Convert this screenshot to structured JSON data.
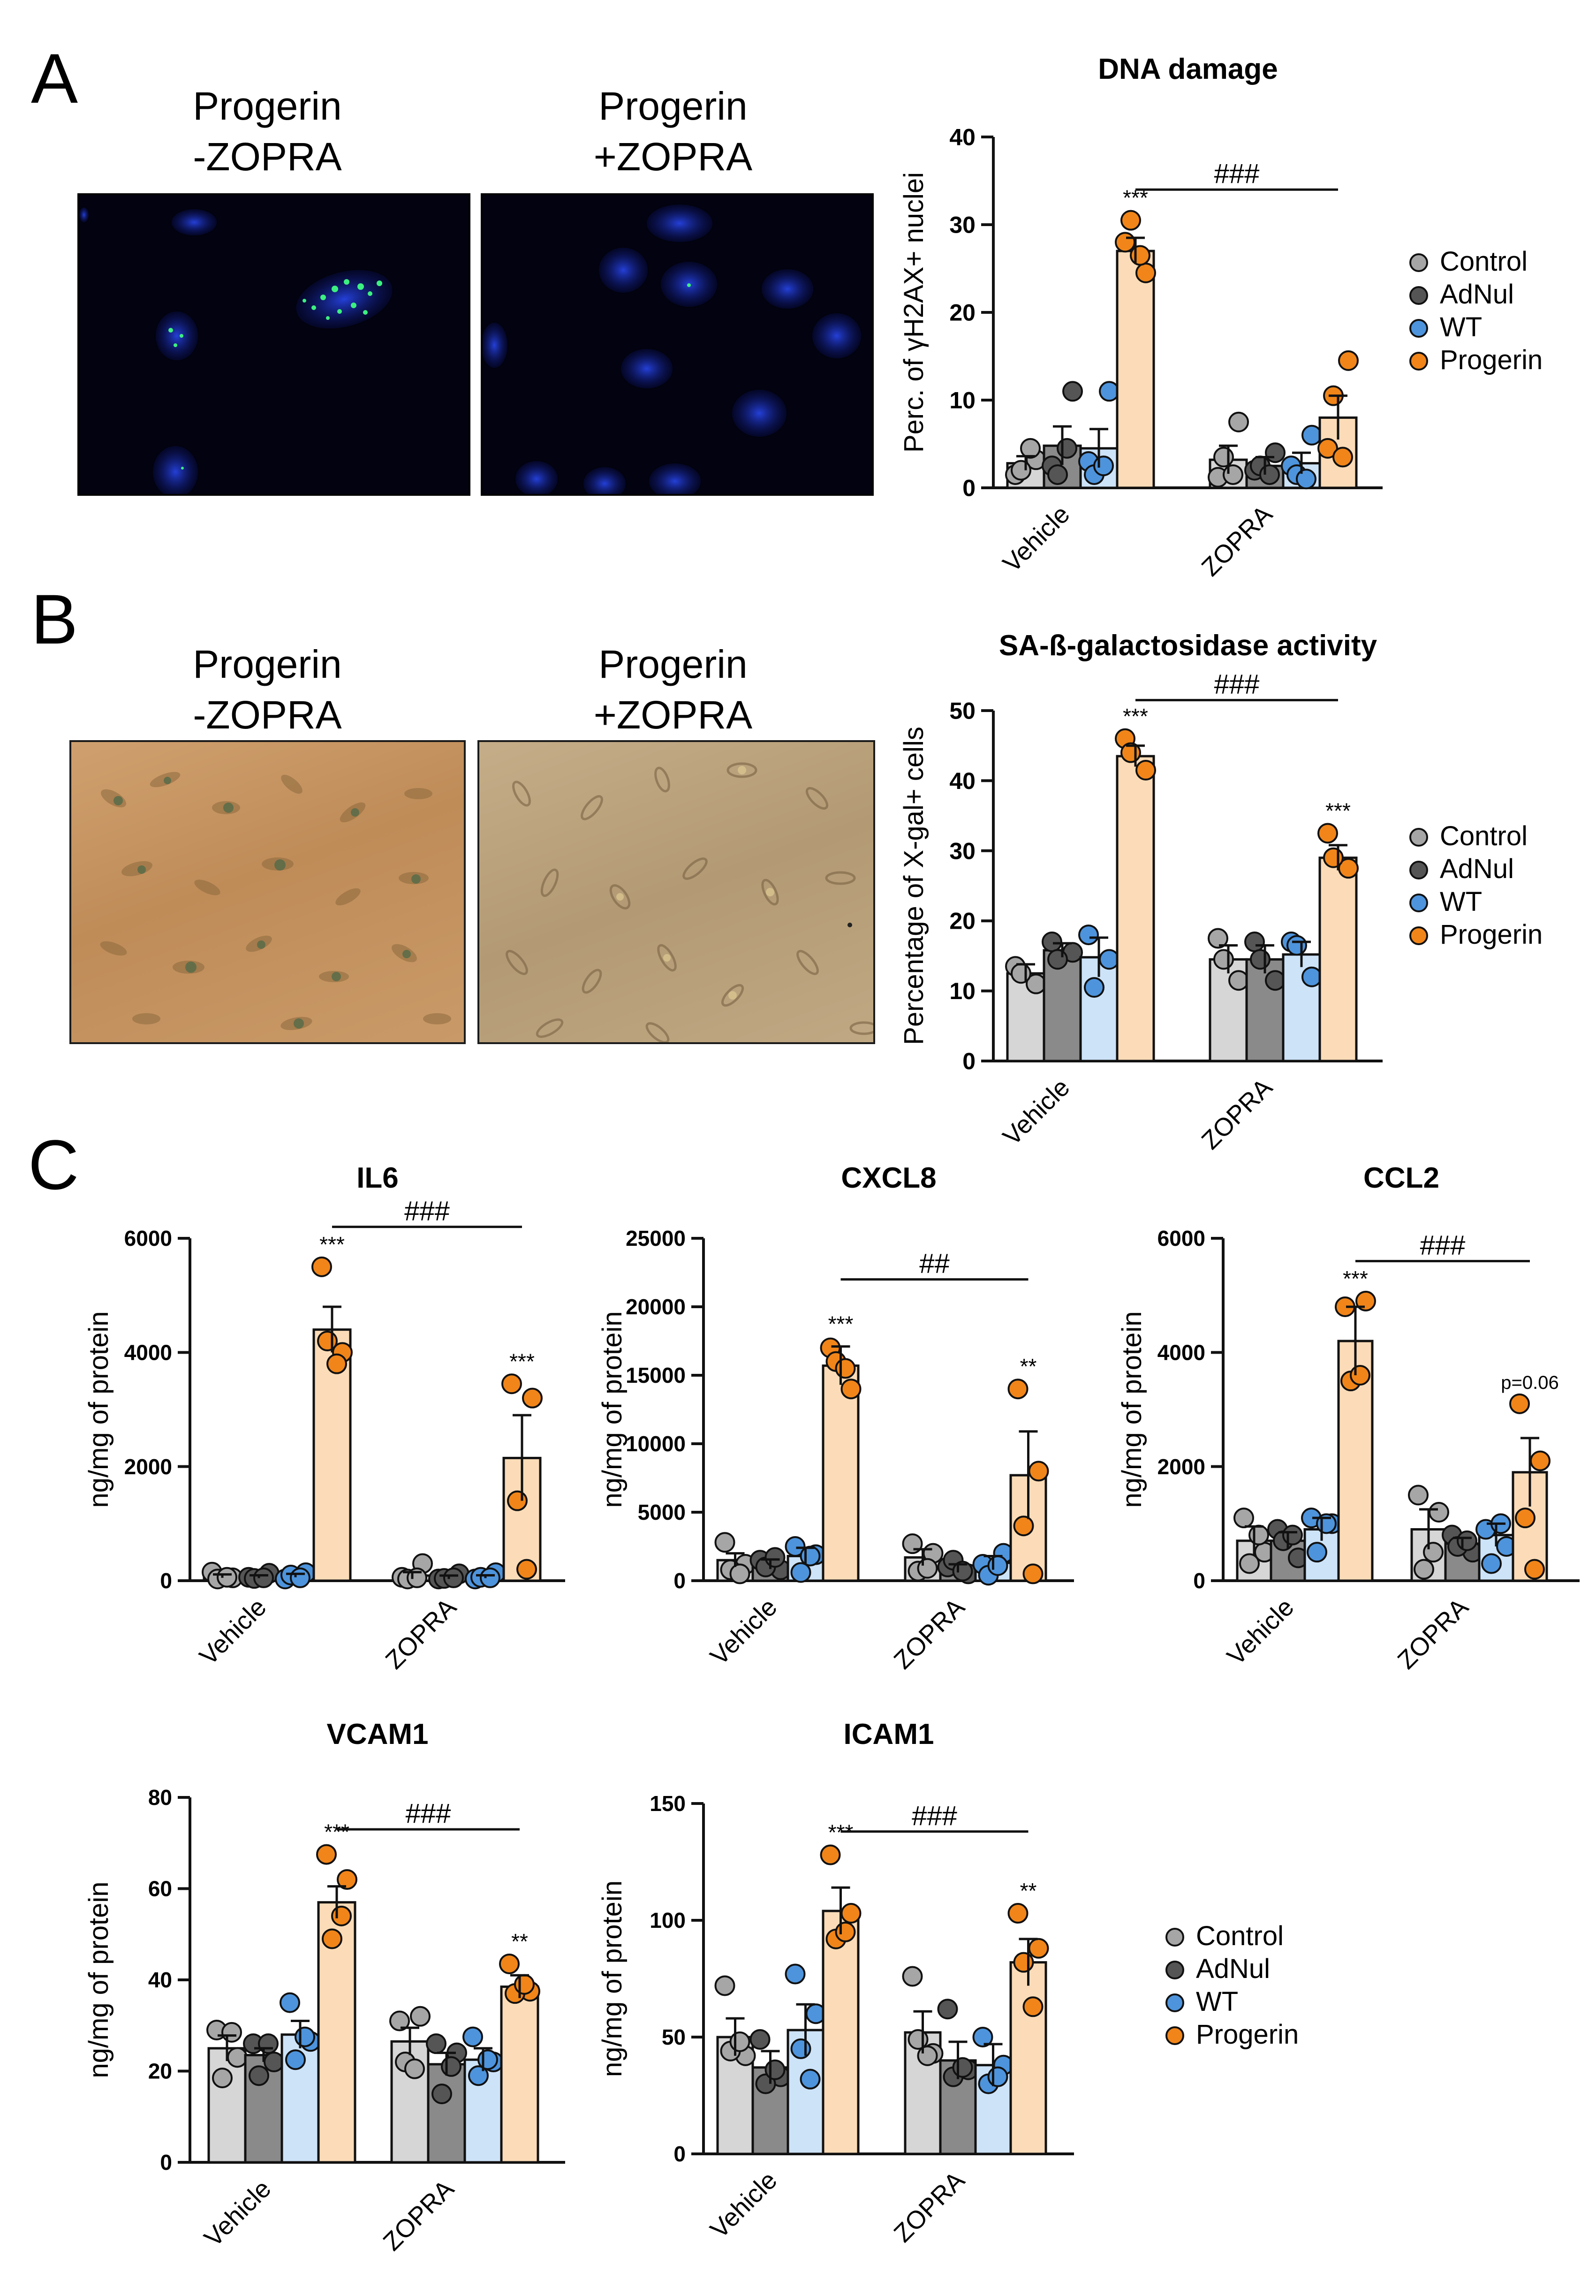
{
  "colors": {
    "Control": "#d6d6d6",
    "AdNul": "#8a8a8a",
    "WT": "#cde3f8",
    "Progerin": "#fcdcb8",
    "dot_Control": "#a6a6a6",
    "dot_AdNul": "#555555",
    "dot_WT": "#4d94dd",
    "dot_Progerin": "#f18519"
  },
  "panels": {
    "A": {
      "letter": "A",
      "left_label": [
        "Progerin",
        "-ZOPRA"
      ],
      "right_label": [
        "Progerin",
        "+ZOPRA"
      ]
    },
    "B": {
      "letter": "B",
      "left_label": [
        "Progerin",
        "-ZOPRA"
      ],
      "right_label": [
        "Progerin",
        "+ZOPRA"
      ]
    },
    "C": {
      "letter": "C"
    }
  },
  "legend": {
    "entries": [
      "Control",
      "AdNul",
      "WT",
      "Progerin"
    ]
  },
  "chart_data": [
    {
      "id": "dna",
      "type": "bar",
      "title": "DNA damage",
      "ylabel": "Perc. of γH2AX+ nuclei",
      "ylim": [
        0,
        40
      ],
      "yticks": [
        0,
        10,
        20,
        30,
        40
      ],
      "ytick_labels": [
        "0",
        "10",
        "20",
        "30",
        "40"
      ],
      "categories": [
        "Vehicle",
        "ZOPRA"
      ],
      "series": [
        {
          "name": "Control",
          "values": [
            2.8,
            3.2
          ],
          "err": [
            0.8,
            1.6
          ],
          "points": [
            [
              1.5,
              3.2,
              2.0,
              4.5
            ],
            [
              1.2,
              7.5,
              3.5,
              1.5
            ]
          ]
        },
        {
          "name": "AdNul",
          "values": [
            4.8,
            2.5
          ],
          "err": [
            2.2,
            1.0
          ],
          "points": [
            [
              2.5,
              11.0,
              1.5,
              4.5
            ],
            [
              2.0,
              4.0,
              2.5,
              1.5
            ]
          ]
        },
        {
          "name": "WT",
          "values": [
            4.5,
            2.8
          ],
          "err": [
            2.2,
            1.2
          ],
          "points": [
            [
              3.0,
              11.0,
              1.5,
              2.5
            ],
            [
              2.5,
              6.0,
              1.5,
              1.0
            ]
          ]
        },
        {
          "name": "Progerin",
          "values": [
            27.0,
            8.0
          ],
          "err": [
            1.5,
            2.5
          ],
          "points": [
            [
              28.0,
              24.5,
              30.5,
              26.5
            ],
            [
              4.5,
              14.5,
              10.5,
              3.5
            ]
          ]
        }
      ],
      "annotations": [
        {
          "cat": 0,
          "series": 3,
          "text": "***"
        }
      ],
      "bracket": {
        "text": "###",
        "y": 34
      }
    },
    {
      "id": "sa",
      "type": "bar",
      "title": "SA-ß-galactosidase activity",
      "ylabel": "Percentage of X-gal+ cells",
      "ylim": [
        0,
        50
      ],
      "yticks": [
        0,
        10,
        20,
        30,
        40,
        50
      ],
      "ytick_labels": [
        "0",
        "10",
        "20",
        "30",
        "40",
        "50"
      ],
      "categories": [
        "Vehicle",
        "ZOPRA"
      ],
      "series": [
        {
          "name": "Control",
          "values": [
            12.5,
            14.5
          ],
          "err": [
            1.3,
            2.0
          ],
          "points": [
            [
              13.5,
              11.0,
              12.5
            ],
            [
              17.5,
              11.5,
              14.5
            ]
          ]
        },
        {
          "name": "AdNul",
          "values": [
            15.8,
            14.5
          ],
          "err": [
            1.0,
            2.0
          ],
          "points": [
            [
              17.0,
              15.5,
              14.5
            ],
            [
              17.0,
              11.5,
              14.5
            ]
          ]
        },
        {
          "name": "WT",
          "values": [
            14.8,
            15.2
          ],
          "err": [
            2.8,
            1.8
          ],
          "points": [
            [
              18.0,
              14.5,
              10.5
            ],
            [
              17.0,
              12.0,
              16.5
            ]
          ]
        },
        {
          "name": "Progerin",
          "values": [
            43.5,
            29.0
          ],
          "err": [
            1.5,
            1.8
          ],
          "points": [
            [
              46.0,
              41.5,
              44.0
            ],
            [
              32.5,
              27.5,
              29.0
            ]
          ]
        }
      ],
      "annotations": [
        {
          "cat": 0,
          "series": 3,
          "text": "***"
        },
        {
          "cat": 1,
          "series": 3,
          "text": "***"
        }
      ],
      "bracket": {
        "text": "###",
        "y": 51.5
      }
    },
    {
      "id": "il6",
      "type": "bar",
      "title": "IL6",
      "ylabel": "ng/mg of protein",
      "ylim": [
        0,
        6000
      ],
      "yticks": [
        0,
        2000,
        4000,
        6000
      ],
      "ytick_labels": [
        "0",
        "2000",
        "4000",
        "6000"
      ],
      "categories": [
        "Vehicle",
        "ZOPRA"
      ],
      "series": [
        {
          "name": "Control",
          "values": [
            80,
            90
          ],
          "err": [
            30,
            60
          ],
          "points": [
            [
              150,
              50,
              30,
              60
            ],
            [
              60,
              300,
              30,
              50
            ]
          ]
        },
        {
          "name": "AdNul",
          "values": [
            70,
            60
          ],
          "err": [
            25,
            30
          ],
          "points": [
            [
              60,
              130,
              40,
              50
            ],
            [
              30,
              120,
              40,
              50
            ]
          ]
        },
        {
          "name": "WT",
          "values": [
            90,
            70
          ],
          "err": [
            30,
            25
          ],
          "points": [
            [
              30,
              140,
              100,
              50
            ],
            [
              30,
              140,
              60,
              50
            ]
          ]
        },
        {
          "name": "Progerin",
          "values": [
            4400,
            2150
          ],
          "err": [
            400,
            750
          ],
          "points": [
            [
              5500,
              4000,
              4200,
              3800
            ],
            [
              3450,
              3200,
              1400,
              200
            ]
          ]
        }
      ],
      "annotations": [
        {
          "cat": 0,
          "series": 3,
          "text": "***"
        },
        {
          "cat": 1,
          "series": 3,
          "text": "***"
        }
      ],
      "bracket": {
        "text": "###",
        "y": 6200
      }
    },
    {
      "id": "cxcl8",
      "type": "bar",
      "title": "CXCL8",
      "ylabel": "ng/mg of protein",
      "ylim": [
        0,
        25000
      ],
      "yticks": [
        0,
        5000,
        10000,
        15000,
        20000,
        25000
      ],
      "ytick_labels": [
        "0",
        "5000",
        "10000",
        "15000",
        "20000",
        "25000"
      ],
      "categories": [
        "Vehicle",
        "ZOPRA"
      ],
      "series": [
        {
          "name": "Control",
          "values": [
            1500,
            1700
          ],
          "err": [
            500,
            600
          ],
          "points": [
            [
              2800,
              1200,
              800,
              500
            ],
            [
              2700,
              2000,
              700,
              900
            ]
          ]
        },
        {
          "name": "AdNul",
          "values": [
            1200,
            900
          ],
          "err": [
            350,
            300
          ],
          "points": [
            [
              1500,
              800,
              1000,
              1700
            ],
            [
              1000,
              500,
              1500,
              700
            ]
          ]
        },
        {
          "name": "WT",
          "values": [
            1800,
            1300
          ],
          "err": [
            600,
            500
          ],
          "points": [
            [
              2500,
              1900,
              600,
              1800
            ],
            [
              1200,
              2000,
              400,
              1100
            ]
          ]
        },
        {
          "name": "Progerin",
          "values": [
            15700,
            7700
          ],
          "err": [
            1400,
            3200
          ],
          "points": [
            [
              17000,
              14000,
              16000,
              15500
            ],
            [
              14000,
              8000,
              4000,
              500
            ]
          ]
        }
      ],
      "annotations": [
        {
          "cat": 0,
          "series": 3,
          "text": "***"
        },
        {
          "cat": 1,
          "series": 3,
          "text": "**"
        }
      ],
      "bracket": {
        "text": "##",
        "y": 22000
      }
    },
    {
      "id": "ccl2",
      "type": "bar",
      "title": "CCL2",
      "ylabel": "ng/mg of protein",
      "ylim": [
        0,
        6000
      ],
      "yticks": [
        0,
        2000,
        4000,
        6000
      ],
      "ytick_labels": [
        "0",
        "2000",
        "4000",
        "6000"
      ],
      "categories": [
        "Vehicle",
        "ZOPRA"
      ],
      "series": [
        {
          "name": "Control",
          "values": [
            700,
            900
          ],
          "err": [
            250,
            350
          ],
          "points": [
            [
              1100,
              500,
              300,
              800
            ],
            [
              1500,
              1200,
              200,
              500
            ]
          ]
        },
        {
          "name": "AdNul",
          "values": [
            700,
            650
          ],
          "err": [
            150,
            100
          ],
          "points": [
            [
              900,
              400,
              700,
              800
            ],
            [
              800,
              500,
              600,
              700
            ]
          ]
        },
        {
          "name": "WT",
          "values": [
            900,
            800
          ],
          "err": [
            200,
            200
          ],
          "points": [
            [
              1100,
              1000,
              500,
              1000
            ],
            [
              900,
              600,
              300,
              1000
            ]
          ]
        },
        {
          "name": "Progerin",
          "values": [
            4200,
            1900
          ],
          "err": [
            600,
            600
          ],
          "points": [
            [
              4800,
              4900,
              3500,
              3600
            ],
            [
              3100,
              2100,
              1100,
              200
            ]
          ]
        }
      ],
      "annotations": [
        {
          "cat": 0,
          "series": 3,
          "text": "***"
        },
        {
          "cat": 1,
          "series": 3,
          "text": "p=0.06"
        }
      ],
      "bracket": {
        "text": "###",
        "y": 5600
      }
    },
    {
      "id": "vcam1",
      "type": "bar",
      "title": "VCAM1",
      "ylabel": "ng/mg of protein",
      "ylim": [
        0,
        80
      ],
      "yticks": [
        0,
        20,
        40,
        60,
        80
      ],
      "ytick_labels": [
        "0",
        "20",
        "40",
        "60",
        "80"
      ],
      "categories": [
        "Vehicle",
        "ZOPRA"
      ],
      "series": [
        {
          "name": "Control",
          "values": [
            25,
            26.5
          ],
          "err": [
            2.8,
            3.0
          ],
          "points": [
            [
              29.0,
              23.0,
              18.5,
              28.5
            ],
            [
              31.0,
              32.0,
              22.0,
              20.5
            ]
          ]
        },
        {
          "name": "AdNul",
          "values": [
            23.5,
            21.5
          ],
          "err": [
            1.5,
            2.5
          ],
          "points": [
            [
              26.0,
              22.0,
              19.0,
              26.0
            ],
            [
              26.0,
              24.0,
              15.0,
              21.0
            ]
          ]
        },
        {
          "name": "WT",
          "values": [
            28,
            22.5
          ],
          "err": [
            3.0,
            2.5
          ],
          "points": [
            [
              35.0,
              26.5,
              22.5,
              27.5
            ],
            [
              27.5,
              22.0,
              19.0,
              22.5
            ]
          ]
        },
        {
          "name": "Progerin",
          "values": [
            57,
            38.5
          ],
          "err": [
            3.5,
            2.5
          ],
          "points": [
            [
              67.5,
              62.0,
              49.0,
              54.0
            ],
            [
              43.5,
              37.5,
              37.0,
              39.0
            ]
          ]
        }
      ],
      "annotations": [
        {
          "cat": 0,
          "series": 3,
          "text": "***"
        },
        {
          "cat": 1,
          "series": 3,
          "text": "**"
        }
      ],
      "bracket": {
        "text": "###",
        "y": 73
      }
    },
    {
      "id": "icam1",
      "type": "bar",
      "title": "ICAM1",
      "ylabel": "ng/mg of protein",
      "ylim": [
        0,
        150
      ],
      "yticks": [
        0,
        50,
        100,
        150
      ],
      "ytick_labels": [
        "0",
        "50",
        "100",
        "150"
      ],
      "categories": [
        "Vehicle",
        "ZOPRA"
      ],
      "series": [
        {
          "name": "Control",
          "values": [
            50,
            52
          ],
          "err": [
            8,
            9
          ],
          "points": [
            [
              72,
              42,
              44,
              48
            ],
            [
              76,
              43,
              49,
              42
            ]
          ]
        },
        {
          "name": "AdNul",
          "values": [
            37,
            40
          ],
          "err": [
            7,
            8
          ],
          "points": [
            [
              49,
              33,
              30,
              36
            ],
            [
              62,
              36,
              33,
              37
            ]
          ]
        },
        {
          "name": "WT",
          "values": [
            53,
            38
          ],
          "err": [
            11,
            9
          ],
          "points": [
            [
              77,
              60,
              45,
              32
            ],
            [
              50,
              38,
              30,
              33
            ]
          ]
        },
        {
          "name": "Progerin",
          "values": [
            104,
            82
          ],
          "err": [
            10,
            10
          ],
          "points": [
            [
              128,
              103,
              92,
              95
            ],
            [
              103,
              88,
              82,
              63
            ]
          ]
        }
      ],
      "annotations": [
        {
          "cat": 0,
          "series": 3,
          "text": "***"
        },
        {
          "cat": 1,
          "series": 3,
          "text": "**"
        }
      ],
      "bracket": {
        "text": "###",
        "y": 138
      }
    }
  ]
}
